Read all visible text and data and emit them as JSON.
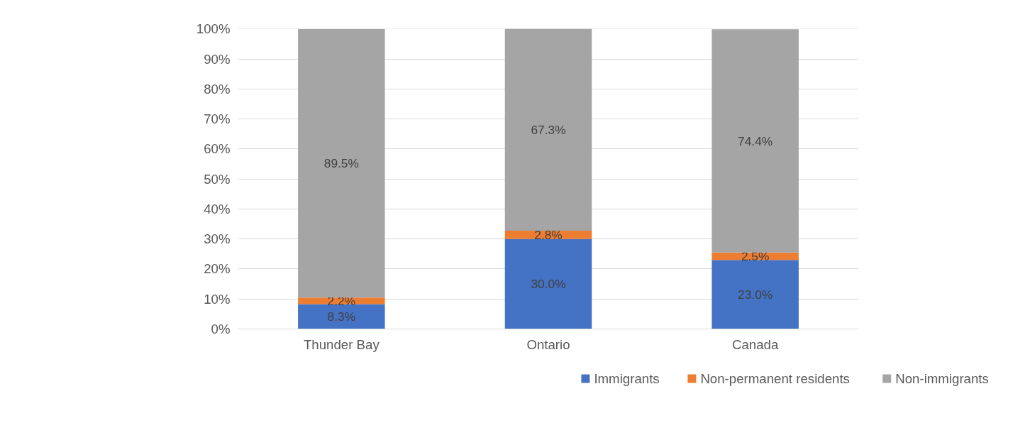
{
  "chart_data": {
    "type": "bar",
    "stacked": true,
    "categories": [
      "Thunder Bay",
      "Ontario",
      "Canada"
    ],
    "series": [
      {
        "name": "Immigrants",
        "color": "#4472c4",
        "values": [
          8.3,
          30.0,
          23.0
        ],
        "value_labels": [
          "8.3%",
          "30.0%",
          "23.0%"
        ]
      },
      {
        "name": "Non-permanent residents",
        "color": "#ed7d31",
        "values": [
          2.2,
          2.8,
          2.5
        ],
        "value_labels": [
          "2.2%",
          "2.8%",
          "2.5%"
        ]
      },
      {
        "name": "Non-immigrants",
        "color": "#a5a5a5",
        "values": [
          89.5,
          67.3,
          74.4
        ],
        "value_labels": [
          "89.5%",
          "67.3%",
          "74.4%"
        ]
      }
    ],
    "ylim": [
      0,
      100.1
    ],
    "yticks": [
      {
        "value": 0,
        "label": "0%"
      },
      {
        "value": 10,
        "label": "10%"
      },
      {
        "value": 20,
        "label": "20%"
      },
      {
        "value": 30,
        "label": "30%"
      },
      {
        "value": 40,
        "label": "40%"
      },
      {
        "value": 50,
        "label": "50%"
      },
      {
        "value": 60,
        "label": "60%"
      },
      {
        "value": 70,
        "label": "70%"
      },
      {
        "value": 80,
        "label": "80%"
      },
      {
        "value": 90,
        "label": "90%"
      },
      {
        "value": 100,
        "label": "100%"
      }
    ],
    "grid": "y",
    "legend": "bottom"
  }
}
